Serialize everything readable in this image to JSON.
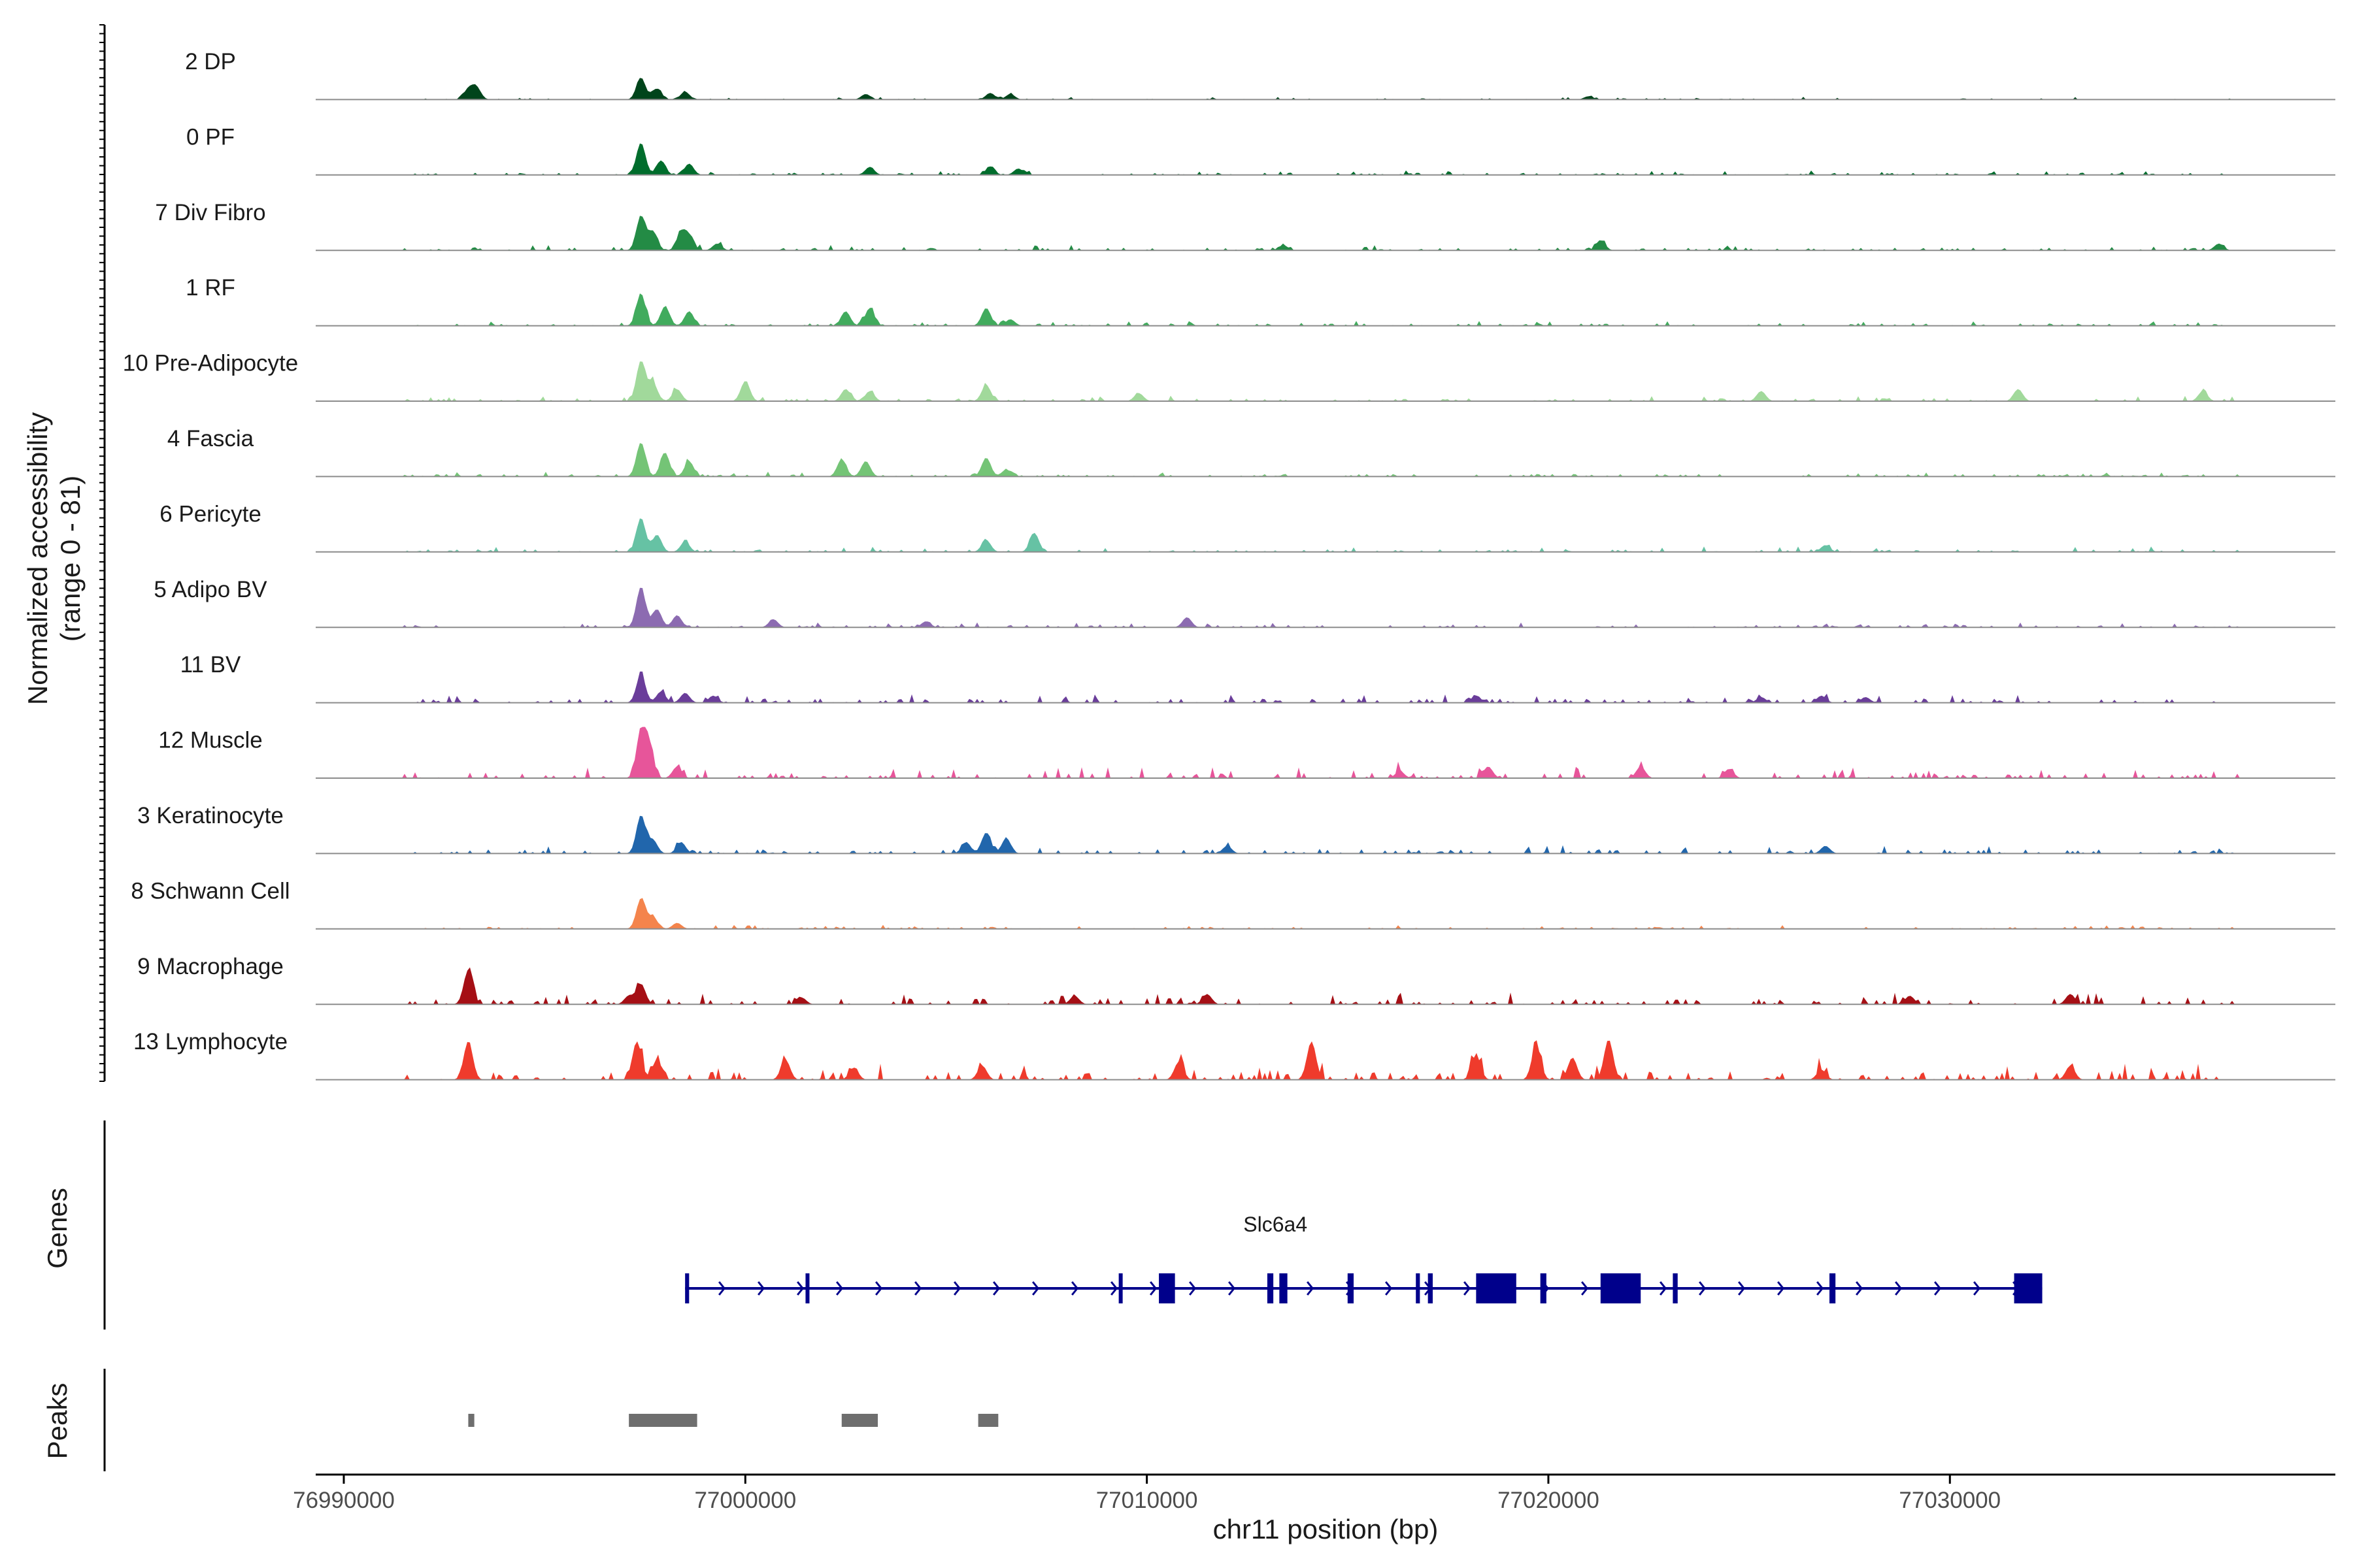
{
  "chart_data": {
    "type": "area",
    "title": "",
    "ylabel_line1": "Normalized accessibility",
    "ylabel_line2": "(range 0 - 81)",
    "ylim": [
      0,
      81
    ],
    "xlabel": "chr11 position (bp)",
    "xlim": [
      76989300,
      77039600
    ],
    "xticks": [
      76990000,
      77000000,
      77010000,
      77020000,
      77030000
    ],
    "tracks": [
      {
        "name": "2 DP",
        "color": "#00441b",
        "scale": 0.55,
        "peaks": [
          [
            76993100,
            0.45
          ],
          [
            76993300,
            0.55
          ],
          [
            76997400,
            1.0
          ],
          [
            76997800,
            0.5
          ],
          [
            76998500,
            0.35
          ],
          [
            77003000,
            0.25
          ],
          [
            77006100,
            0.3
          ],
          [
            77006600,
            0.25
          ],
          [
            77021000,
            0.15
          ]
        ],
        "noise": 0.12,
        "seed": 11
      },
      {
        "name": "0 PF",
        "color": "#006d2c",
        "scale": 0.8,
        "peaks": [
          [
            76997400,
            1.0
          ],
          [
            76997900,
            0.45
          ],
          [
            76998600,
            0.35
          ],
          [
            77003100,
            0.25
          ],
          [
            77006100,
            0.25
          ],
          [
            77006800,
            0.2
          ]
        ],
        "noise": 0.14,
        "seed": 23
      },
      {
        "name": "7 Div Fibro",
        "color": "#238b45",
        "scale": 0.85,
        "peaks": [
          [
            76997400,
            1.0
          ],
          [
            76997700,
            0.55
          ],
          [
            76998400,
            0.5
          ],
          [
            76998600,
            0.4
          ],
          [
            76999300,
            0.2
          ],
          [
            77021300,
            0.3
          ],
          [
            77013400,
            0.15
          ],
          [
            77036700,
            0.2
          ]
        ],
        "noise": 0.16,
        "seed": 37
      },
      {
        "name": "1 RF",
        "color": "#41ab5d",
        "scale": 0.8,
        "peaks": [
          [
            76997400,
            1.0
          ],
          [
            76998000,
            0.6
          ],
          [
            76998600,
            0.45
          ],
          [
            77002500,
            0.45
          ],
          [
            77003100,
            0.55
          ],
          [
            77006000,
            0.55
          ],
          [
            77006600,
            0.2
          ]
        ],
        "noise": 0.15,
        "seed": 41
      },
      {
        "name": "10 Pre-Adipocyte",
        "color": "#a1d99b",
        "scale": 1.0,
        "peaks": [
          [
            76997400,
            1.0
          ],
          [
            76997700,
            0.45
          ],
          [
            76998300,
            0.3
          ],
          [
            77000000,
            0.5
          ],
          [
            77002500,
            0.3
          ],
          [
            77003100,
            0.25
          ],
          [
            77006000,
            0.4
          ],
          [
            77009800,
            0.2
          ],
          [
            77025300,
            0.25
          ],
          [
            77031700,
            0.3
          ],
          [
            77036300,
            0.25
          ]
        ],
        "noise": 0.14,
        "seed": 53
      },
      {
        "name": "4 Fascia",
        "color": "#74c476",
        "scale": 0.85,
        "peaks": [
          [
            76997400,
            1.0
          ],
          [
            76998000,
            0.7
          ],
          [
            76998600,
            0.45
          ],
          [
            77002400,
            0.5
          ],
          [
            77003000,
            0.45
          ],
          [
            77006000,
            0.55
          ],
          [
            77006500,
            0.2
          ]
        ],
        "noise": 0.15,
        "seed": 67
      },
      {
        "name": "6 Pericyte",
        "color": "#66c2a4",
        "scale": 0.85,
        "peaks": [
          [
            76997400,
            1.0
          ],
          [
            76997800,
            0.5
          ],
          [
            76998500,
            0.3
          ],
          [
            77006000,
            0.35
          ],
          [
            77007200,
            0.55
          ],
          [
            77026900,
            0.2
          ]
        ],
        "noise": 0.16,
        "seed": 71
      },
      {
        "name": "5 Adipo BV",
        "color": "#8c6bb1",
        "scale": 1.0,
        "peaks": [
          [
            76997400,
            1.0
          ],
          [
            76997800,
            0.45
          ],
          [
            76998300,
            0.3
          ],
          [
            77000700,
            0.2
          ],
          [
            77004500,
            0.15
          ],
          [
            77011000,
            0.25
          ]
        ],
        "noise": 0.12,
        "seed": 83
      },
      {
        "name": "11 BV",
        "color": "#6a3d9a",
        "scale": 0.7,
        "peaks": [
          [
            76997400,
            1.0
          ],
          [
            76997900,
            0.4
          ],
          [
            76998500,
            0.35
          ],
          [
            76999200,
            0.25
          ],
          [
            77018200,
            0.25
          ],
          [
            77025300,
            0.2
          ],
          [
            77026800,
            0.25
          ],
          [
            77027900,
            0.2
          ]
        ],
        "noise": 0.3,
        "seed": 97
      },
      {
        "name": "12 Muscle",
        "color": "#e7559a",
        "scale": 1.15,
        "peaks": [
          [
            76997400,
            1.0
          ],
          [
            76997600,
            0.7
          ],
          [
            76998300,
            0.25
          ],
          [
            77016300,
            0.15
          ],
          [
            77018500,
            0.25
          ],
          [
            77022300,
            0.25
          ],
          [
            77024500,
            0.2
          ]
        ],
        "noise": 0.25,
        "seed": 101
      },
      {
        "name": "3 Keratinocyte",
        "color": "#2166ac",
        "scale": 0.95,
        "peaks": [
          [
            76997400,
            1.0
          ],
          [
            76997700,
            0.35
          ],
          [
            76998400,
            0.3
          ],
          [
            77005500,
            0.3
          ],
          [
            77006000,
            0.55
          ],
          [
            77006500,
            0.4
          ],
          [
            77012000,
            0.2
          ],
          [
            77026900,
            0.2
          ]
        ],
        "noise": 0.22,
        "seed": 109
      },
      {
        "name": "8 Schwann Cell",
        "color": "#f4844c",
        "scale": 0.75,
        "peaks": [
          [
            76997400,
            1.0
          ],
          [
            76997700,
            0.4
          ],
          [
            76998300,
            0.2
          ]
        ],
        "noise": 0.14,
        "seed": 113
      },
      {
        "name": "9 Macrophage",
        "color": "#a50f15",
        "scale": 0.85,
        "peaks": [
          [
            76993100,
            1.0
          ],
          [
            76997400,
            0.6
          ],
          [
            76997100,
            0.25
          ],
          [
            77001400,
            0.2
          ],
          [
            77008200,
            0.25
          ],
          [
            77011500,
            0.3
          ],
          [
            77029000,
            0.25
          ],
          [
            77033000,
            0.3
          ]
        ],
        "noise": 0.35,
        "seed": 127
      },
      {
        "name": "13 Lymphocyte",
        "color": "#ef3b2c",
        "scale": 1.0,
        "peaks": [
          [
            76993100,
            0.95
          ],
          [
            76997300,
            0.95
          ],
          [
            76997800,
            0.5
          ],
          [
            77001000,
            0.5
          ],
          [
            77002700,
            0.3
          ],
          [
            77005900,
            0.35
          ],
          [
            77010800,
            0.45
          ],
          [
            77014100,
            0.95
          ],
          [
            77018200,
            0.6
          ],
          [
            77019700,
            0.85
          ],
          [
            77020600,
            0.55
          ],
          [
            77021500,
            1.0
          ],
          [
            77026800,
            0.25
          ],
          [
            77033000,
            0.35
          ]
        ],
        "noise": 0.4,
        "seed": 131
      }
    ],
    "genes_label": "Genes",
    "gene": {
      "name": "Slc6a4",
      "start": 76998500,
      "end": 77032300,
      "strand": "+",
      "color": "#00008b",
      "exons": [
        [
          76998500,
          76998600
        ],
        [
          77001500,
          77001560
        ],
        [
          77009300,
          77009340
        ],
        [
          77010300,
          77010700
        ],
        [
          77013000,
          77013150
        ],
        [
          77013300,
          77013500
        ],
        [
          77015000,
          77015150
        ],
        [
          77016700,
          77016800
        ],
        [
          77017000,
          77017120
        ],
        [
          77018200,
          77019200
        ],
        [
          77019800,
          77019950
        ],
        [
          77021300,
          77022300
        ],
        [
          77023100,
          77023220
        ],
        [
          77027000,
          77027150
        ],
        [
          77031600,
          77032300
        ]
      ]
    },
    "peaks_label": "Peaks",
    "peak_regions": [
      [
        76993100,
        76993250
      ],
      [
        76997100,
        76998800
      ],
      [
        77002400,
        77003300
      ],
      [
        77005800,
        77006300
      ]
    ]
  }
}
